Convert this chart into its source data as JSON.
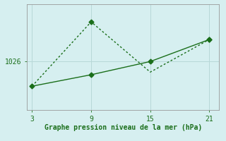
{
  "x": [
    3,
    9,
    15,
    21
  ],
  "line1_y": [
    1023.2,
    1030.5,
    1024.8,
    1028.5
  ],
  "line2_y": [
    1023.2,
    1024.5,
    1026.0,
    1028.5
  ],
  "line_color": "#1a6e1a",
  "bg_color": "#d6eff0",
  "grid_color": "#b8d8d8",
  "xlabel": "Graphe pression niveau de la mer (hPa)",
  "xlabel_color": "#1a6e1a",
  "xticks": [
    3,
    9,
    15,
    21
  ],
  "ytick_label": 1026,
  "ylim": [
    1020.5,
    1032.5
  ],
  "xlim": [
    2.5,
    22.0
  ],
  "markersize": 3.5
}
